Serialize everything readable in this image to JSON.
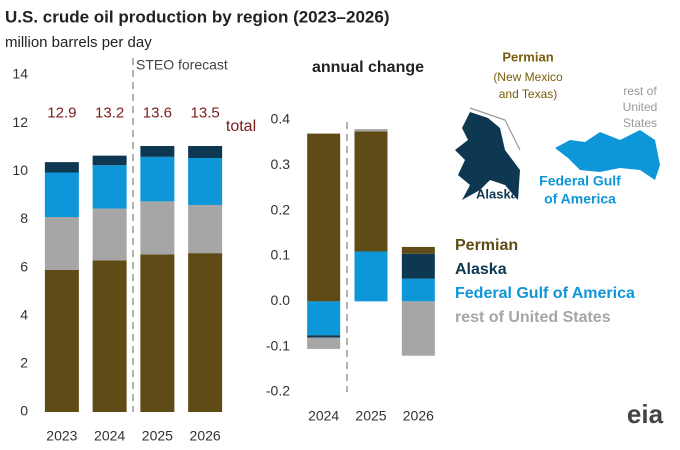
{
  "chart_data": [
    {
      "type": "bar",
      "stacked": true,
      "title": "U.S. crude oil production by region (2023–2026)",
      "subtitle": "million barrels per day",
      "annotation": "STEO forecast",
      "categories": [
        "2023",
        "2024",
        "2025",
        "2026"
      ],
      "series": [
        {
          "name": "Permian",
          "color": "#5e4b16",
          "values": [
            5.9,
            6.3,
            6.55,
            6.6
          ]
        },
        {
          "name": "rest of United States",
          "color": "#a6a6a6",
          "values": [
            2.2,
            2.15,
            2.2,
            2.0
          ]
        },
        {
          "name": "Federal Gulf of America",
          "color": "#0d96d8",
          "values": [
            1.85,
            1.8,
            1.85,
            1.95
          ]
        },
        {
          "name": "Alaska",
          "color": "#0e3752",
          "values": [
            0.43,
            0.4,
            0.45,
            0.5
          ]
        }
      ],
      "totals": {
        "label": "total",
        "color": "#7b1c1c",
        "values": [
          12.9,
          13.2,
          13.6,
          13.5
        ]
      },
      "ylim": [
        0,
        14
      ],
      "yticks": [
        0,
        2,
        4,
        6,
        8,
        10,
        12,
        14
      ],
      "grid": false
    },
    {
      "type": "bar",
      "stacked": true,
      "title": "annual change",
      "categories": [
        "2024",
        "2025",
        "2026"
      ],
      "series": [
        {
          "color": "#0d96d8",
          "values": [
            -0.075,
            0.11,
            0.05
          ]
        },
        {
          "color": "#0e3752",
          "values": [
            -0.005,
            0.0,
            0.055
          ]
        },
        {
          "color": "#5e4b16",
          "values": [
            0.37,
            0.265,
            0.015
          ]
        },
        {
          "color": "#a6a6a6",
          "values": [
            -0.025,
            0.005,
            -0.12
          ]
        }
      ],
      "ylim": [
        -0.2,
        0.4
      ],
      "yticks": [
        -0.2,
        -0.1,
        {
          "value": 0,
          "label": "0.0"
        },
        0.1,
        0.2,
        0.3,
        0.4
      ],
      "grid": false
    }
  ],
  "map": {
    "permian": "Permian",
    "permian_note": [
      "(New Mexico",
      "and Texas)"
    ],
    "alaska": "Alaska",
    "gulf": [
      "Federal Gulf",
      "of America"
    ],
    "rest": [
      "rest of",
      "United",
      "States"
    ]
  },
  "logo": "eia"
}
